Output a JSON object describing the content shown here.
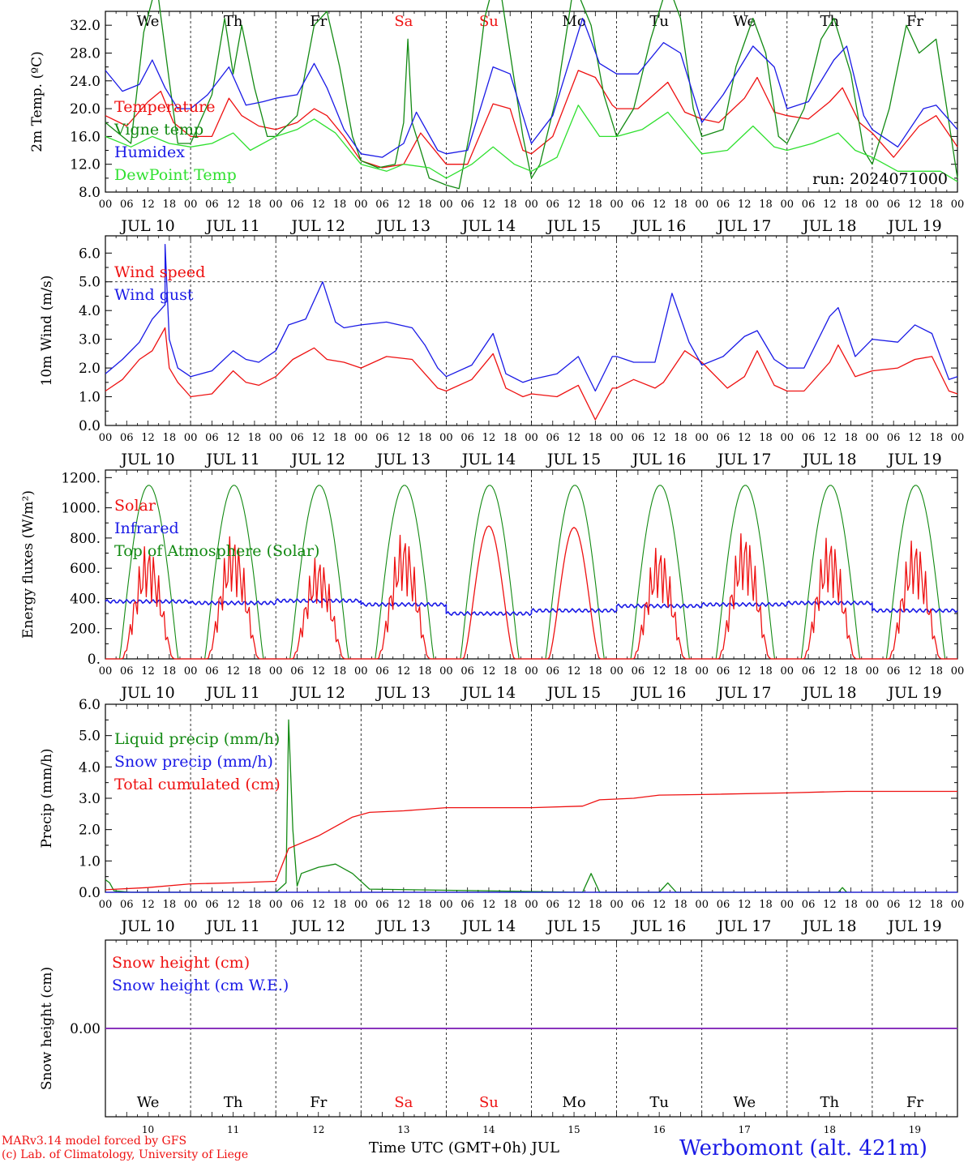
{
  "run_label": "run: 2024071000",
  "days": [
    "We",
    "Th",
    "Fr",
    "Sa",
    "Su",
    "Mo",
    "Tu",
    "We",
    "Th",
    "Fr"
  ],
  "weekend_days": [
    3,
    4
  ],
  "dates": [
    "JUL 10",
    "JUL 11",
    "JUL 12",
    "JUL 13",
    "JUL 14",
    "JUL 15",
    "JUL 16",
    "JUL 17",
    "JUL 18",
    "JUL 19"
  ],
  "day_numbers": [
    "10",
    "11",
    "12",
    "13",
    "14",
    "15",
    "16",
    "17",
    "18",
    "19"
  ],
  "hour_ticks": [
    "00",
    "06",
    "12",
    "18"
  ],
  "colors": {
    "red": "#ee1111",
    "green": "#138a13",
    "blue": "#1a1ae6",
    "lightgreen": "#2fe02f",
    "purple": "#8b2bbf",
    "grid": "#000000"
  },
  "footer": {
    "credit_line1": "MARv3.14 model forced by GFS",
    "credit_line2": "(c) Lab. of Climatology, University of Liege",
    "xlabel": "Time UTC (GMT+0h) JUL",
    "station": "Werbomont (alt. 421m)"
  },
  "chart_data": [
    {
      "type": "line",
      "ylabel": "2m Temp. (ºC)",
      "ylim": [
        8,
        34
      ],
      "yticks": [
        "8.0",
        "12.0",
        "16.0",
        "20.0",
        "24.0",
        "28.0",
        "32.0"
      ],
      "x_unit": "days since JUL 10 00 UTC",
      "series": [
        {
          "name": "Temperature",
          "color": "red",
          "x": [
            0,
            0.25,
            0.5,
            0.65,
            0.8,
            1,
            1.25,
            1.45,
            1.6,
            1.8,
            2,
            2.25,
            2.45,
            2.6,
            2.8,
            3,
            3.25,
            3.5,
            3.7,
            3.9,
            4,
            4.25,
            4.55,
            4.75,
            4.9,
            5,
            5.25,
            5.55,
            5.75,
            5.95,
            6,
            6.25,
            6.6,
            6.8,
            7,
            7.2,
            7.5,
            7.65,
            7.85,
            8,
            8.25,
            8.5,
            8.65,
            8.85,
            9,
            9.25,
            9.55,
            9.75,
            10
          ],
          "y": [
            19,
            17.5,
            21,
            22.5,
            18,
            16,
            16,
            21.5,
            19,
            17.5,
            17,
            18,
            20,
            19,
            16,
            12.5,
            11.5,
            12,
            16.5,
            13.5,
            12,
            12,
            20.7,
            20,
            14,
            13.5,
            16,
            25.5,
            24.5,
            20.5,
            20,
            20,
            23.8,
            19.5,
            18.5,
            18,
            21.5,
            24.5,
            19.5,
            19,
            18.5,
            21,
            23,
            18,
            16.5,
            13,
            17.5,
            19,
            14.5
          ]
        },
        {
          "name": "Vigne temp",
          "color": "green",
          "x": [
            0,
            0.3,
            0.45,
            0.6,
            0.75,
            0.85,
            1,
            1.25,
            1.4,
            1.5,
            1.6,
            1.75,
            1.9,
            2,
            2.25,
            2.45,
            2.6,
            2.75,
            2.9,
            3,
            3.2,
            3.4,
            3.5,
            3.55,
            3.6,
            3.8,
            4,
            4.15,
            4.3,
            4.45,
            4.6,
            4.75,
            4.9,
            5,
            5.1,
            5.3,
            5.5,
            5.7,
            5.85,
            6,
            6.2,
            6.4,
            6.6,
            6.75,
            6.9,
            7,
            7.25,
            7.4,
            7.6,
            7.75,
            7.9,
            8,
            8.2,
            8.4,
            8.55,
            8.75,
            8.9,
            9,
            9.2,
            9.4,
            9.55,
            9.75,
            9.9,
            10
          ],
          "y": [
            18,
            15,
            31,
            38,
            24,
            15,
            15,
            22,
            33,
            25,
            32,
            23,
            16,
            16,
            19,
            32,
            34,
            26,
            16,
            12.5,
            11.5,
            12,
            18,
            30,
            18,
            10,
            9,
            8.5,
            18,
            33,
            40,
            28,
            16,
            10,
            12,
            22,
            38,
            32,
            22,
            16,
            20,
            30,
            38,
            33,
            20,
            16,
            17,
            26,
            33,
            28,
            16,
            15,
            20,
            30,
            33,
            25,
            14,
            12,
            20,
            32,
            28,
            30,
            18,
            10
          ]
        },
        {
          "name": "Humidex",
          "color": "blue",
          "x": [
            0,
            0.2,
            0.4,
            0.55,
            0.7,
            0.85,
            1,
            1.2,
            1.45,
            1.65,
            1.85,
            2,
            2.25,
            2.45,
            2.6,
            2.8,
            3,
            3.25,
            3.5,
            3.65,
            3.9,
            4,
            4.25,
            4.55,
            4.75,
            4.95,
            5,
            5.25,
            5.6,
            5.8,
            6,
            6.25,
            6.55,
            6.75,
            7,
            7.25,
            7.6,
            7.85,
            8,
            8.25,
            8.55,
            8.7,
            8.9,
            9,
            9.3,
            9.6,
            9.75,
            10
          ],
          "y": [
            25.5,
            22.5,
            23.5,
            27,
            23,
            20,
            20,
            22,
            26,
            20.5,
            21,
            21.5,
            22,
            26.5,
            23,
            17,
            13.5,
            13,
            15,
            19.5,
            14,
            13.5,
            14,
            26,
            25,
            17,
            15,
            19,
            33,
            26.5,
            25,
            25,
            29.5,
            28,
            18,
            22,
            29,
            26,
            20,
            21,
            27,
            29,
            19,
            17,
            14.5,
            20,
            20.5,
            17
          ]
        },
        {
          "name": "DewPoint Temp",
          "color": "lightgreen",
          "x": [
            0,
            0.3,
            0.55,
            0.75,
            1,
            1.25,
            1.5,
            1.7,
            2,
            2.25,
            2.45,
            2.7,
            3,
            3.3,
            3.5,
            3.8,
            4,
            4.3,
            4.55,
            4.8,
            5,
            5.3,
            5.55,
            5.8,
            6,
            6.3,
            6.6,
            6.8,
            7,
            7.3,
            7.6,
            7.85,
            8,
            8.3,
            8.6,
            8.8,
            9,
            9.3,
            9.6,
            9.8,
            10
          ],
          "y": [
            16,
            14.5,
            16,
            15,
            14.5,
            15,
            16.5,
            14,
            16,
            17,
            18.5,
            16.5,
            12,
            11,
            12,
            11.5,
            10,
            12,
            14.5,
            12,
            11,
            13,
            20.5,
            16,
            16,
            17,
            19.5,
            16.5,
            13.5,
            14,
            17.5,
            14.5,
            14,
            15,
            16.5,
            14,
            13,
            11,
            11,
            11,
            9.5
          ]
        }
      ]
    },
    {
      "type": "line",
      "ylabel": "10m Wind (m/s)",
      "ylim": [
        0,
        6.6
      ],
      "yticks": [
        "0.0",
        "1.0",
        "2.0",
        "3.0",
        "4.0",
        "5.0",
        "6.0"
      ],
      "hline": 5,
      "x_unit": "days since JUL 10 00 UTC",
      "series": [
        {
          "name": "Wind speed",
          "color": "red",
          "x": [
            0,
            0.2,
            0.4,
            0.55,
            0.7,
            0.7,
            0.75,
            0.85,
            1,
            1.25,
            1.5,
            1.65,
            1.8,
            2,
            2.2,
            2.45,
            2.6,
            2.8,
            3,
            3.3,
            3.6,
            3.75,
            3.9,
            4,
            4.3,
            4.55,
            4.7,
            4.9,
            5,
            5.3,
            5.55,
            5.75,
            5.95,
            6,
            6.2,
            6.45,
            6.55,
            6.8,
            7,
            7.3,
            7.5,
            7.65,
            7.85,
            8,
            8.2,
            8.5,
            8.6,
            8.8,
            9,
            9.3,
            9.5,
            9.7,
            9.9,
            10
          ],
          "y": [
            1.2,
            1.6,
            2.3,
            2.6,
            3.4,
            3.4,
            2,
            1.5,
            1,
            1.1,
            1.9,
            1.5,
            1.4,
            1.7,
            2.3,
            2.7,
            2.3,
            2.2,
            2,
            2.4,
            2.3,
            1.8,
            1.3,
            1.2,
            1.6,
            2.5,
            1.3,
            1,
            1.1,
            1,
            1.4,
            0.2,
            1.3,
            1.3,
            1.6,
            1.3,
            1.5,
            2.6,
            2.2,
            1.3,
            1.7,
            2.6,
            1.4,
            1.2,
            1.2,
            2.2,
            2.8,
            1.7,
            1.9,
            2,
            2.3,
            2.4,
            1.2,
            1.1
          ]
        },
        {
          "name": "Wind gust",
          "color": "blue",
          "x": [
            0,
            0.2,
            0.4,
            0.55,
            0.7,
            0.7,
            0.75,
            0.85,
            1,
            1.25,
            1.5,
            1.65,
            1.8,
            2,
            2.15,
            2.35,
            2.55,
            2.7,
            2.8,
            3,
            3.3,
            3.6,
            3.75,
            3.9,
            4,
            4.3,
            4.55,
            4.7,
            4.9,
            5,
            5.3,
            5.55,
            5.75,
            5.95,
            6,
            6.2,
            6.45,
            6.65,
            6.85,
            7,
            7.25,
            7.5,
            7.65,
            7.85,
            8,
            8.2,
            8.5,
            8.6,
            8.8,
            9,
            9.3,
            9.5,
            9.7,
            9.9,
            10
          ],
          "y": [
            1.8,
            2.3,
            2.9,
            3.7,
            4.2,
            6.3,
            3,
            2,
            1.7,
            1.9,
            2.6,
            2.3,
            2.2,
            2.6,
            3.5,
            3.7,
            5,
            3.6,
            3.4,
            3.5,
            3.6,
            3.4,
            2.8,
            2,
            1.7,
            2.1,
            3.2,
            1.8,
            1.5,
            1.6,
            1.8,
            2.4,
            1.2,
            2.4,
            2.4,
            2.2,
            2.2,
            4.6,
            2.9,
            2.1,
            2.4,
            3.1,
            3.3,
            2.3,
            2,
            2,
            3.8,
            4.1,
            2.4,
            3,
            2.9,
            3.5,
            3.2,
            1.6,
            1.7
          ]
        }
      ]
    },
    {
      "type": "line",
      "ylabel": "Energy fluxes (W/m²)",
      "ylim": [
        0,
        1250
      ],
      "yticks": [
        "0.",
        "200.",
        "400.",
        "600.",
        "800.",
        "1000.",
        "1200."
      ],
      "x_unit": "days since JUL 10 00 UTC",
      "solar_peaks": [
        780,
        850,
        700,
        860,
        880,
        870,
        770,
        870,
        840,
        820
      ],
      "toa_peak": 1150,
      "infrared_level": [
        380,
        370,
        385,
        360,
        300,
        320,
        350,
        360,
        370,
        320
      ],
      "series": [
        {
          "name": "Solar",
          "color": "red"
        },
        {
          "name": "Infrared",
          "color": "blue"
        },
        {
          "name": "Top of Atmosphere (Solar)",
          "color": "green"
        }
      ]
    },
    {
      "type": "line",
      "ylabel": "Precip (mm/h)",
      "ylim": [
        0,
        6
      ],
      "yticks": [
        "0.0",
        "1.0",
        "2.0",
        "3.0",
        "4.0",
        "5.0",
        "6.0"
      ],
      "x_unit": "days since JUL 10 00 UTC",
      "series": [
        {
          "name": "Liquid precip (mm/h)",
          "color": "green",
          "x": [
            0,
            0.05,
            0.1,
            0.3,
            1,
            2,
            2.12,
            2.15,
            2.2,
            2.25,
            2.3,
            2.5,
            2.7,
            2.9,
            3.1,
            5.6,
            5.7,
            5.8,
            6.5,
            6.6,
            6.7,
            8.6,
            8.65,
            8.7
          ],
          "y": [
            0.4,
            0.3,
            0.05,
            0,
            0,
            0,
            0.3,
            5.5,
            2,
            0.2,
            0.6,
            0.8,
            0.9,
            0.6,
            0.1,
            0,
            0.6,
            0,
            0,
            0.3,
            0,
            0,
            0.15,
            0
          ]
        },
        {
          "name": "Snow precip (mm/h)",
          "color": "blue",
          "x": [
            0,
            10
          ],
          "y": [
            0,
            0
          ]
        },
        {
          "name": "Total cumulated (cm)",
          "color": "red",
          "x": [
            0,
            0.5,
            1,
            1.5,
            2,
            2.15,
            2.5,
            2.9,
            3.1,
            3.5,
            4,
            5,
            5.6,
            5.8,
            6.2,
            6.5,
            7,
            8,
            8.7,
            10
          ],
          "y": [
            0.08,
            0.15,
            0.27,
            0.3,
            0.35,
            1.4,
            1.8,
            2.4,
            2.55,
            2.6,
            2.7,
            2.7,
            2.75,
            2.95,
            3,
            3.1,
            3.12,
            3.17,
            3.22,
            3.22
          ]
        }
      ]
    },
    {
      "type": "line",
      "ylabel": "Snow height (cm)",
      "ylim": [
        -1,
        1
      ],
      "yticks": [
        "0.00"
      ],
      "series": [
        {
          "name": "Snow height (cm)",
          "color": "red",
          "x": [
            0,
            10
          ],
          "y": [
            0,
            0
          ]
        },
        {
          "name": "Snow height (cm W.E.)",
          "color": "blue",
          "x": [
            0,
            10
          ],
          "y": [
            0,
            0
          ]
        }
      ]
    }
  ]
}
